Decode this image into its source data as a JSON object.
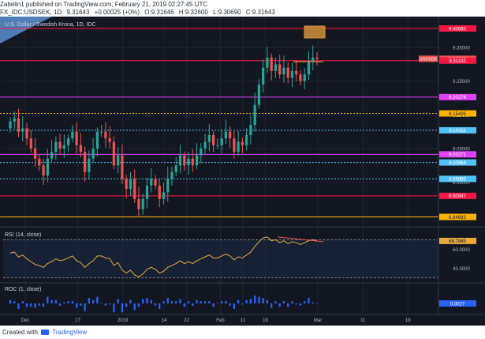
{
  "header": {
    "publisher": "Zabelin1 published on TradingView.com, February 21, 2019 02:27:45 UTC",
    "symbol": "FX_IDC:USDSEK, 1D",
    "last": "9.31643",
    "change": "+0.00025 (+0%)",
    "open": "O:9.31646",
    "high": "H:9.32600",
    "low": "L:9.30690",
    "close": "C:9.31643"
  },
  "footer": {
    "prefix": "Created with",
    "brand": "TradingView"
  },
  "colors": {
    "background": "#131722",
    "up_candle": "#26a69a",
    "down_candle": "#ef5350",
    "rsi_line": "#e8a93a",
    "roc_bars": "#2962ff",
    "price_tag": "#ef5350",
    "level_red": "#ff1744",
    "level_magenta": "#e040fb",
    "level_orange": "#ffb300",
    "level_blue": "#4fc3f7"
  },
  "chart_data": [
    {
      "type": "candlestick",
      "title": "U.S. Dollar / Swedish Krona, 1D, IDC",
      "ylim": [
        8.82,
        9.43
      ],
      "x_tick_labels": [
        "Dec",
        "17",
        "2019",
        "14",
        "22",
        "Feb",
        "11",
        "19",
        "Mar",
        "11",
        "19"
      ],
      "y_tick_labels": [
        "9.35000",
        "9.25000",
        "9.15000",
        "9.05000",
        "8.95000",
        "8.85000"
      ],
      "price_tags": [
        {
          "label": "9.40660",
          "value": 9.4066,
          "color": "#ff1744"
        },
        {
          "label": "9.31643",
          "value": 9.31643,
          "color": "#ef5350"
        },
        {
          "label": "9.31102",
          "value": 9.31102,
          "color": "#ff1744"
        },
        {
          "label": "9.20274",
          "value": 9.20274,
          "color": "#e040fb"
        },
        {
          "label": "9.15426",
          "value": 9.15426,
          "color": "#ffb300"
        },
        {
          "label": "9.10411",
          "value": 9.10411,
          "color": "#4fc3f7"
        },
        {
          "label": "9.03271",
          "value": 9.03271,
          "color": "#e040fb"
        },
        {
          "label": "9.00864",
          "value": 9.00864,
          "color": "#4fc3f7"
        },
        {
          "label": "8.95989",
          "value": 8.95989,
          "color": "#4fc3f7"
        },
        {
          "label": "8.90947",
          "value": 8.90947,
          "color": "#ff1744"
        },
        {
          "label": "8.84693",
          "value": 8.84693,
          "color": "#ffb300"
        }
      ],
      "symbol_tag": "USDSEK",
      "closes": [
        9.13,
        9.14,
        9.1,
        9.11,
        9.08,
        9.05,
        9.02,
        9.0,
        8.97,
        9.02,
        9.04,
        9.07,
        9.05,
        9.06,
        9.08,
        9.1,
        9.06,
        9.04,
        8.98,
        9.02,
        9.05,
        9.1,
        9.1,
        9.08,
        9.07,
        9.0,
        9.03,
        8.96,
        8.93,
        8.96,
        8.9,
        8.87,
        8.9,
        8.94,
        8.96,
        8.94,
        8.9,
        8.92,
        8.96,
        8.98,
        9.0,
        9.03,
        9.0,
        9.02,
        9.0,
        9.03,
        9.05,
        9.07,
        9.09,
        9.06,
        9.06,
        9.08,
        9.1,
        9.08,
        9.04,
        9.07,
        9.06,
        9.09,
        9.12,
        9.18,
        9.24,
        9.29,
        9.32,
        9.28,
        9.3,
        9.27,
        9.29,
        9.26,
        9.28,
        9.27,
        9.25,
        9.27,
        9.31,
        9.32,
        9.316
      ]
    },
    {
      "type": "line",
      "title": "RSI (14, close)",
      "ylim": [
        28,
        82
      ],
      "y_tick_labels": [
        "60.0000",
        "40.0000"
      ],
      "last_label": "68.7845",
      "values": [
        56,
        57,
        52,
        54,
        50,
        47,
        44,
        43,
        41,
        45,
        47,
        50,
        48,
        49,
        51,
        53,
        48,
        46,
        41,
        45,
        48,
        53,
        53,
        51,
        50,
        43,
        46,
        38,
        35,
        38,
        33,
        31,
        34,
        39,
        41,
        39,
        35,
        37,
        41,
        43,
        45,
        48,
        45,
        47,
        45,
        48,
        50,
        52,
        54,
        51,
        51,
        53,
        55,
        53,
        49,
        52,
        51,
        54,
        57,
        63,
        68,
        72,
        73,
        69,
        70,
        67,
        69,
        66,
        68,
        67,
        65,
        67,
        69,
        70,
        68.78
      ]
    },
    {
      "type": "bar",
      "title": "ROC (1, close)",
      "last_label": "0.0027",
      "values": [
        0.3,
        0.2,
        -0.5,
        0.2,
        -0.3,
        -0.3,
        -0.4,
        -0.2,
        -0.3,
        0.6,
        0.3,
        0.3,
        -0.2,
        0.1,
        0.2,
        0.2,
        -0.4,
        -0.2,
        -0.7,
        0.5,
        0.3,
        0.6,
        0.05,
        -0.2,
        -0.1,
        -0.8,
        0.4,
        -0.8,
        -0.3,
        0.3,
        -0.6,
        -0.3,
        0.4,
        0.5,
        0.3,
        -0.2,
        -0.5,
        0.2,
        0.5,
        0.2,
        0.2,
        0.4,
        -0.3,
        0.2,
        -0.2,
        0.3,
        0.2,
        0.2,
        0.2,
        -0.3,
        0.05,
        0.2,
        0.2,
        -0.2,
        -0.5,
        0.3,
        -0.1,
        0.3,
        0.4,
        0.7,
        0.6,
        0.5,
        0.3,
        -0.4,
        0.2,
        -0.3,
        0.2,
        -0.3,
        0.2,
        -0.1,
        -0.2,
        0.2,
        0.5,
        0.1,
        0.0027
      ]
    }
  ]
}
